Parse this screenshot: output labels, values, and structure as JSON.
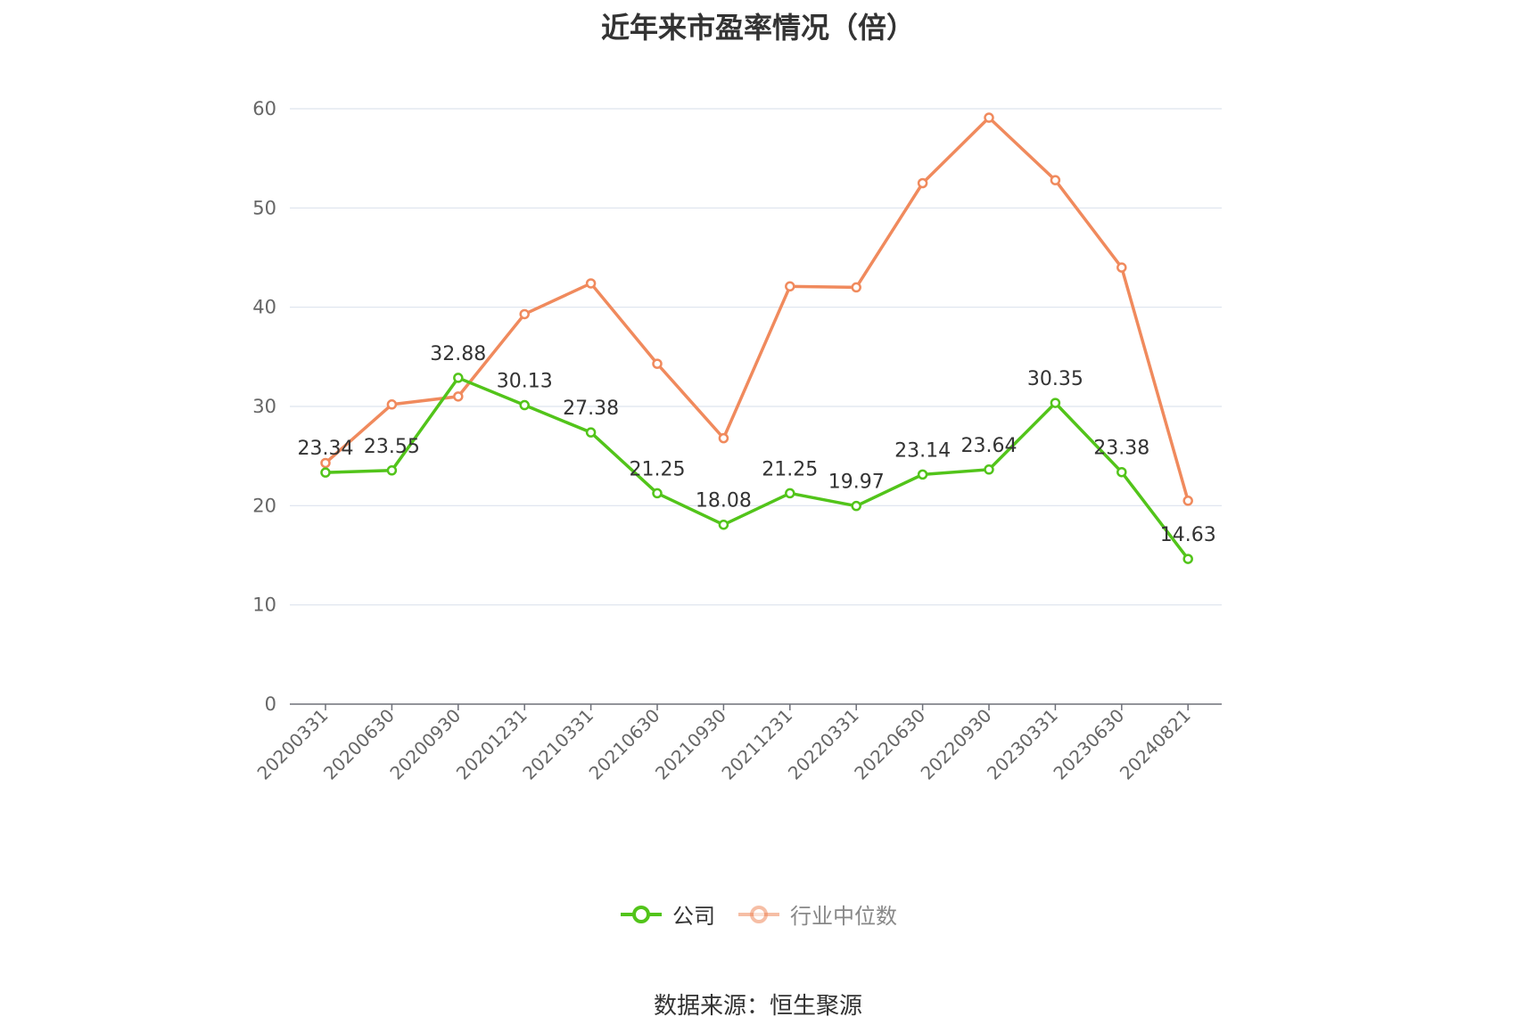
{
  "chart_data": {
    "type": "line",
    "title": "近年来市盈率情况（倍）",
    "categories": [
      "20200331",
      "20200630",
      "20200930",
      "20201231",
      "20210331",
      "20210630",
      "20210930",
      "20211231",
      "20220331",
      "20220630",
      "20220930",
      "20230331",
      "20230630",
      "20240821"
    ],
    "ylim": [
      0,
      60
    ],
    "yticks": [
      0,
      10,
      20,
      30,
      40,
      50,
      60
    ],
    "grid": true,
    "legend_position": "bottom",
    "series": [
      {
        "name": "公司",
        "color": "#52c41a",
        "values": [
          23.34,
          23.55,
          32.88,
          30.13,
          27.38,
          21.25,
          18.08,
          21.25,
          19.97,
          23.14,
          23.64,
          30.35,
          23.38,
          14.63
        ],
        "show_labels": true
      },
      {
        "name": "行业中位数",
        "color": "#f08a5d",
        "values": [
          24.3,
          30.2,
          31.0,
          39.3,
          42.4,
          34.3,
          26.8,
          42.1,
          42.0,
          52.5,
          59.1,
          52.8,
          44.0,
          20.5
        ],
        "show_labels": false
      }
    ],
    "source": "数据来源：恒生聚源"
  }
}
